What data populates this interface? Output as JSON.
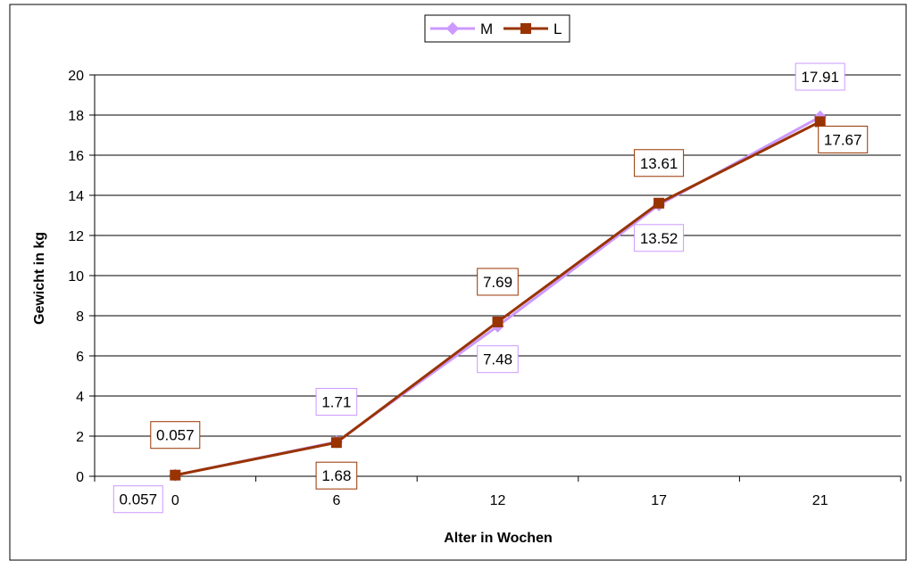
{
  "chart_data": {
    "type": "line",
    "categories": [
      "0",
      "6",
      "12",
      "17",
      "21"
    ],
    "series": [
      {
        "name": "M",
        "values": [
          0.057,
          1.71,
          7.48,
          13.52,
          17.91
        ],
        "labels": [
          "0.057",
          "1.71",
          "7.48",
          "13.52",
          "17.91"
        ],
        "color": "#cc99ff",
        "marker": "diamond"
      },
      {
        "name": "L",
        "values": [
          0.057,
          1.68,
          7.69,
          13.61,
          17.67
        ],
        "labels": [
          "0.057",
          "1.68",
          "7.69",
          "13.61",
          "17.67"
        ],
        "color": "#993300",
        "marker": "square"
      }
    ],
    "xlabel": "Alter in Wochen",
    "ylabel": "Gewicht in kg",
    "ylim": [
      0,
      20
    ],
    "yticks": [
      "0",
      "2",
      "4",
      "6",
      "8",
      "10",
      "12",
      "14",
      "16",
      "18",
      "20"
    ],
    "grid": true,
    "legend_position": "top-center"
  },
  "colors": {
    "border": "#000000",
    "grid": "#000000",
    "background": "#ffffff"
  }
}
